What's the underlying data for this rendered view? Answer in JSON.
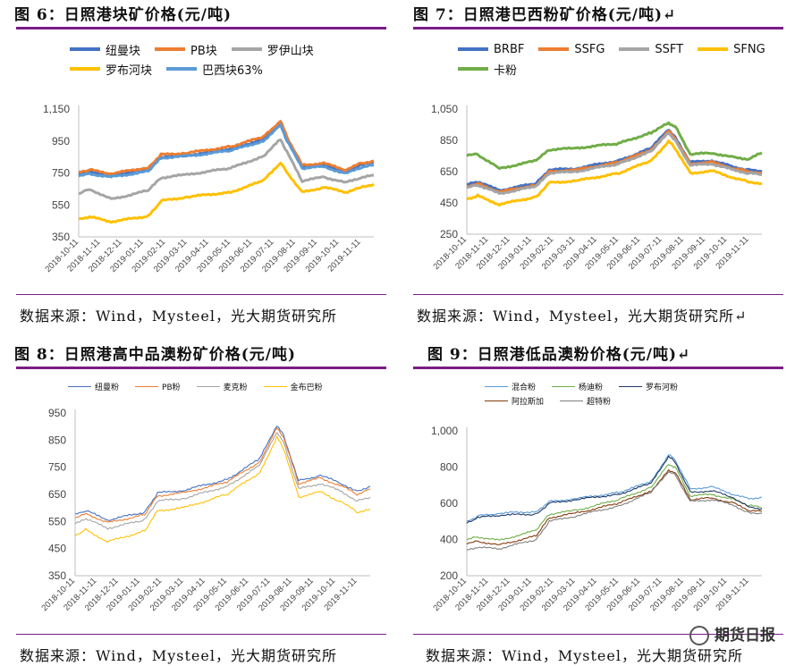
{
  "titles": {
    "fig6": "图 6：日照港块矿价格(元/吨)",
    "fig7": "图 7：日照港巴西粉矿价格(元/吨)↵",
    "fig8": "图 8：日照港高中品澳粉矿价格(元/吨)",
    "fig9": "图 9：日照港低品澳粉价格(元/吨)↵"
  },
  "sources": {
    "s6": "数据来源：Wind，Mysteel，光大期货研究所",
    "s7": "数据来源：Wind，Mysteel，光大期货研究所↵",
    "s8": "数据来源：Wind，Mysteel，光大期货研究所",
    "s9": "数据来源：Wind，Mysteel，光大期货研究所"
  },
  "watermark": {
    "text": "期货日报",
    "icon": "wechat-logo-icon"
  },
  "x_dates": [
    "2018-10-11",
    "2018-11-11",
    "2018-12-11",
    "2019-01-11",
    "2019-02-11",
    "2019-03-11",
    "2019-04-11",
    "2019-05-11",
    "2019-06-11",
    "2019-07-11",
    "2019-08-11",
    "2019-09-11",
    "2019-10-11",
    "2019-11-11"
  ],
  "chart_data": [
    {
      "id": "fig6",
      "type": "line",
      "title": "图 6：日照港块矿价格(元/吨)",
      "ylim": [
        350,
        1150
      ],
      "yticks": [
        350,
        550,
        750,
        950,
        1150
      ],
      "ytick_labels": [
        "350",
        "550",
        "750",
        "950",
        "1,150"
      ],
      "x_ticks": [
        "2018-10-11",
        "2018-11-11",
        "2018-12-11",
        "2019-01-11",
        "2019-02-11",
        "2019-03-11",
        "2019-04-11",
        "2019-05-11",
        "2019-06-11",
        "2019-07-11",
        "2019-08-11",
        "2019-09-11",
        "2019-10-11",
        "2019-11-11"
      ],
      "x_anchor": [
        0,
        0.5,
        1.5,
        3.2,
        3.8,
        5,
        7,
        8.5,
        9.3,
        9.6,
        10.3,
        11.3,
        12.3,
        13,
        13.6
      ],
      "legend_position": "top",
      "series": [
        {
          "name": "纽曼块",
          "color": "#4472c4",
          "values": [
            745,
            760,
            735,
            775,
            850,
            860,
            900,
            960,
            1060,
            960,
            790,
            800,
            760,
            800,
            815
          ]
        },
        {
          "name": "PB块",
          "color": "#ed7d31",
          "values": [
            755,
            770,
            745,
            785,
            865,
            875,
            915,
            975,
            1075,
            975,
            800,
            810,
            770,
            810,
            825
          ]
        },
        {
          "name": "罗伊山块",
          "color": "#a5a5a5",
          "values": [
            620,
            650,
            585,
            640,
            720,
            740,
            780,
            855,
            960,
            880,
            700,
            725,
            690,
            720,
            735
          ]
        },
        {
          "name": "罗布河块",
          "color": "#ffc000",
          "values": [
            460,
            475,
            445,
            480,
            575,
            600,
            630,
            700,
            815,
            755,
            630,
            660,
            630,
            660,
            680
          ]
        },
        {
          "name": "巴西块63%",
          "color": "#5b9bd5",
          "values": [
            735,
            745,
            725,
            760,
            845,
            855,
            890,
            950,
            1050,
            950,
            780,
            790,
            745,
            785,
            800
          ]
        }
      ]
    },
    {
      "id": "fig7",
      "type": "line",
      "title": "图 7：日照港巴西粉矿价格(元/吨)↵",
      "ylim": [
        250,
        1050
      ],
      "yticks": [
        250,
        450,
        650,
        850,
        1050
      ],
      "ytick_labels": [
        "250",
        "450",
        "650",
        "850",
        "1,050"
      ],
      "x_ticks": [
        "2018-10-11",
        "2018-11-11",
        "2018-12-11",
        "2019-01-11",
        "2019-02-11",
        "2019-03-11",
        "2019-04-11",
        "2019-05-11",
        "2019-06-11",
        "2019-07-11",
        "2019-08-11",
        "2019-09-11",
        "2019-10-11",
        "2019-11-11"
      ],
      "x_anchor": [
        0,
        0.5,
        1.5,
        3.2,
        3.8,
        5,
        7,
        8.5,
        9.3,
        9.6,
        10.3,
        11.3,
        12.3,
        13,
        13.6
      ],
      "legend_position": "top",
      "series": [
        {
          "name": "BRBF",
          "color": "#4472c4",
          "values": [
            565,
            585,
            530,
            575,
            660,
            670,
            720,
            800,
            920,
            870,
            710,
            720,
            680,
            660,
            650
          ]
        },
        {
          "name": "SSFG",
          "color": "#ed7d31",
          "values": [
            555,
            575,
            520,
            565,
            650,
            660,
            710,
            790,
            910,
            860,
            700,
            710,
            670,
            650,
            640
          ]
        },
        {
          "name": "SSFT",
          "color": "#a5a5a5",
          "values": [
            545,
            565,
            510,
            555,
            640,
            650,
            700,
            780,
            900,
            850,
            690,
            700,
            660,
            640,
            630
          ]
        },
        {
          "name": "SFNG",
          "color": "#ffc000",
          "values": [
            475,
            495,
            440,
            490,
            580,
            590,
            640,
            720,
            845,
            800,
            640,
            655,
            610,
            585,
            575
          ]
        },
        {
          "name": "卡粉",
          "color": "#70ad47",
          "values": [
            755,
            760,
            670,
            720,
            790,
            800,
            830,
            900,
            960,
            940,
            760,
            770,
            740,
            730,
            770
          ]
        }
      ]
    },
    {
      "id": "fig8",
      "type": "line",
      "title": "图 8：日照港高中品澳粉矿价格(元/吨)",
      "ylim": [
        350,
        950
      ],
      "yticks": [
        350,
        450,
        550,
        650,
        750,
        850,
        950
      ],
      "ytick_labels": [
        "350",
        "450",
        "550",
        "650",
        "750",
        "850",
        "950"
      ],
      "x_ticks": [
        "2018-10-11",
        "2018-11-11",
        "2018-12-11",
        "2019-01-11",
        "2019-02-11",
        "2019-03-11",
        "2019-04-11",
        "2019-05-11",
        "2019-06-11",
        "2019-07-11",
        "2019-08-11",
        "2019-09-11",
        "2019-10-11",
        "2019-11-11"
      ],
      "x_anchor": [
        0,
        0.5,
        1.5,
        3.2,
        3.8,
        5,
        7,
        8.5,
        9.3,
        9.6,
        10.3,
        11.3,
        12.3,
        13,
        13.6
      ],
      "legend_position": "top",
      "series": [
        {
          "name": "纽曼粉",
          "color": "#4472c4",
          "values": [
            575,
            590,
            555,
            585,
            655,
            665,
            705,
            780,
            905,
            870,
            700,
            720,
            690,
            660,
            680
          ]
        },
        {
          "name": "PB粉",
          "color": "#ed7d31",
          "values": [
            565,
            580,
            545,
            575,
            645,
            655,
            695,
            770,
            895,
            860,
            690,
            710,
            680,
            650,
            670
          ]
        },
        {
          "name": "麦克粉",
          "color": "#a5a5a5",
          "values": [
            540,
            560,
            525,
            555,
            625,
            635,
            680,
            755,
            880,
            845,
            670,
            690,
            660,
            625,
            640
          ]
        },
        {
          "name": "金布巴粉",
          "color": "#ffc000",
          "values": [
            500,
            520,
            475,
            515,
            590,
            600,
            650,
            730,
            860,
            820,
            640,
            660,
            620,
            585,
            595
          ]
        }
      ]
    },
    {
      "id": "fig9",
      "type": "line",
      "title": "图 9：日照港低品澳粉价格(元/吨)↵",
      "ylim": [
        200,
        1000
      ],
      "yticks": [
        200,
        400,
        600,
        800,
        1000
      ],
      "ytick_labels": [
        "200",
        "400",
        "600",
        "800",
        "1,000"
      ],
      "x_ticks": [
        "2018-10-11",
        "2018-11-11",
        "2018-12-11",
        "2019-01-11",
        "2019-02-11",
        "2019-03-11",
        "2019-04-11",
        "2019-05-11",
        "2019-06-11",
        "2019-07-11",
        "2019-08-11",
        "2019-09-11",
        "2019-10-11",
        "2019-11-11"
      ],
      "x_anchor": [
        0,
        0.5,
        1.5,
        3.2,
        3.8,
        5,
        7,
        8.5,
        9.3,
        9.6,
        10.3,
        11.3,
        12.3,
        13,
        13.6
      ],
      "legend_position": "top",
      "series": [
        {
          "name": "混合粉",
          "color": "#5b9bd5",
          "values": [
            500,
            530,
            545,
            555,
            610,
            625,
            660,
            720,
            870,
            840,
            680,
            690,
            650,
            625,
            635
          ]
        },
        {
          "name": "杨迪粉",
          "color": "#70ad47",
          "values": [
            400,
            415,
            395,
            450,
            540,
            560,
            620,
            690,
            815,
            800,
            640,
            650,
            620,
            590,
            575
          ]
        },
        {
          "name": "罗布河粉",
          "color": "#1f3864",
          "values": [
            490,
            520,
            535,
            540,
            600,
            620,
            650,
            710,
            860,
            830,
            660,
            670,
            630,
            580,
            570
          ]
        },
        {
          "name": "阿拉斯加",
          "color": "#843c0c",
          "values": [
            380,
            390,
            370,
            420,
            520,
            545,
            600,
            670,
            780,
            770,
            620,
            630,
            600,
            560,
            555
          ]
        },
        {
          "name": "超特粉",
          "color": "#7f7f7f",
          "values": [
            340,
            355,
            350,
            400,
            500,
            530,
            585,
            660,
            775,
            760,
            610,
            620,
            590,
            545,
            545
          ]
        }
      ]
    }
  ]
}
